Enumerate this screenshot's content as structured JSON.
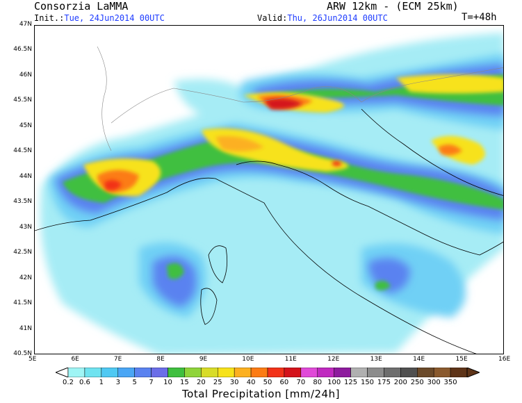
{
  "header": {
    "org": "Consorzia LaMMA",
    "model": "ARW 12km - (ECM 25km)",
    "init_label": "Init.:",
    "init_value": "Tue, 24Jun2014 00UTC",
    "valid_label": "Valid:",
    "valid_value": "Thu, 26Jun2014 00UTC",
    "step": "T=+48h"
  },
  "map": {
    "lat_labels": [
      "47N",
      "46.5N",
      "46N",
      "45.5N",
      "45N",
      "44.5N",
      "44N",
      "43.5N",
      "43N",
      "42.5N",
      "42N",
      "41.5N",
      "41N",
      "40.5N"
    ],
    "lon_labels": [
      "5E",
      "6E",
      "7E",
      "8E",
      "9E",
      "10E",
      "11E",
      "12E",
      "13E",
      "14E",
      "15E",
      "16E"
    ]
  },
  "colorbar": {
    "title": "Total Precipitation [mm/24h]",
    "labels": [
      "0.2",
      "0.6",
      "1",
      "3",
      "5",
      "7",
      "10",
      "15",
      "20",
      "25",
      "30",
      "40",
      "50",
      "60",
      "70",
      "80",
      "100",
      "125",
      "150",
      "175",
      "200",
      "250",
      "300",
      "350"
    ],
    "colors": [
      "#9ff5f5",
      "#6fe3f0",
      "#4fc9f3",
      "#4aa6f5",
      "#5a82f0",
      "#6b6ee8",
      "#3fbf3f",
      "#8fd43a",
      "#d8dc28",
      "#f7e21a",
      "#fcb020",
      "#fc7c14",
      "#f23219",
      "#d4131b",
      "#e04ad8",
      "#c02ac0",
      "#8e1c9e",
      "#b0b0b0",
      "#8c8c8c",
      "#6e6e6e",
      "#505050",
      "#6b4a2a",
      "#8a5a2e",
      "#5e3418"
    ]
  }
}
